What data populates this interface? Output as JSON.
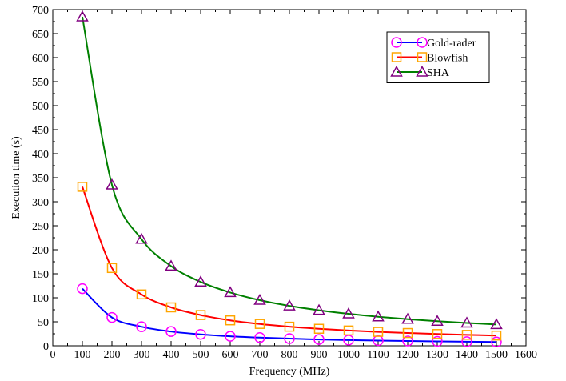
{
  "chart_data": {
    "type": "line",
    "title": "",
    "xlabel": "Frequency (MHz)",
    "ylabel": "Execution time (s)",
    "xlim": [
      0,
      1600
    ],
    "ylim": [
      0,
      700
    ],
    "x_ticks": [
      0,
      100,
      200,
      300,
      400,
      500,
      600,
      700,
      800,
      900,
      1000,
      1100,
      1200,
      1300,
      1400,
      1500,
      1600
    ],
    "y_ticks": [
      0,
      50,
      100,
      150,
      200,
      250,
      300,
      350,
      400,
      450,
      500,
      550,
      600,
      650,
      700
    ],
    "grid": false,
    "legend_position": "top-right",
    "x": [
      100,
      200,
      300,
      400,
      500,
      600,
      700,
      800,
      900,
      1000,
      1100,
      1200,
      1300,
      1400,
      1500
    ],
    "series": [
      {
        "name": "Gold-rader",
        "color": "#0000ff",
        "marker": "circle",
        "marker_color": "#ff00ff",
        "values": [
          119,
          59,
          39.7,
          29.7,
          23.8,
          19.8,
          17,
          14.9,
          13.2,
          11.9,
          10.8,
          9.9,
          9.2,
          8.5,
          7.9
        ]
      },
      {
        "name": "Blowfish",
        "color": "#ff0000",
        "marker": "square",
        "marker_color": "#ffa500",
        "values": [
          331,
          162,
          107,
          80,
          64,
          53,
          45.5,
          39.8,
          35.4,
          31.9,
          29,
          26.6,
          24.5,
          22.8,
          21.3
        ]
      },
      {
        "name": "SHA",
        "color": "#008000",
        "marker": "triangle",
        "marker_color": "#800080",
        "values": [
          685,
          335,
          222,
          166,
          133,
          111,
          95,
          83.2,
          74,
          66.6,
          60.5,
          55.5,
          51.2,
          47.6,
          44.4
        ]
      }
    ]
  }
}
